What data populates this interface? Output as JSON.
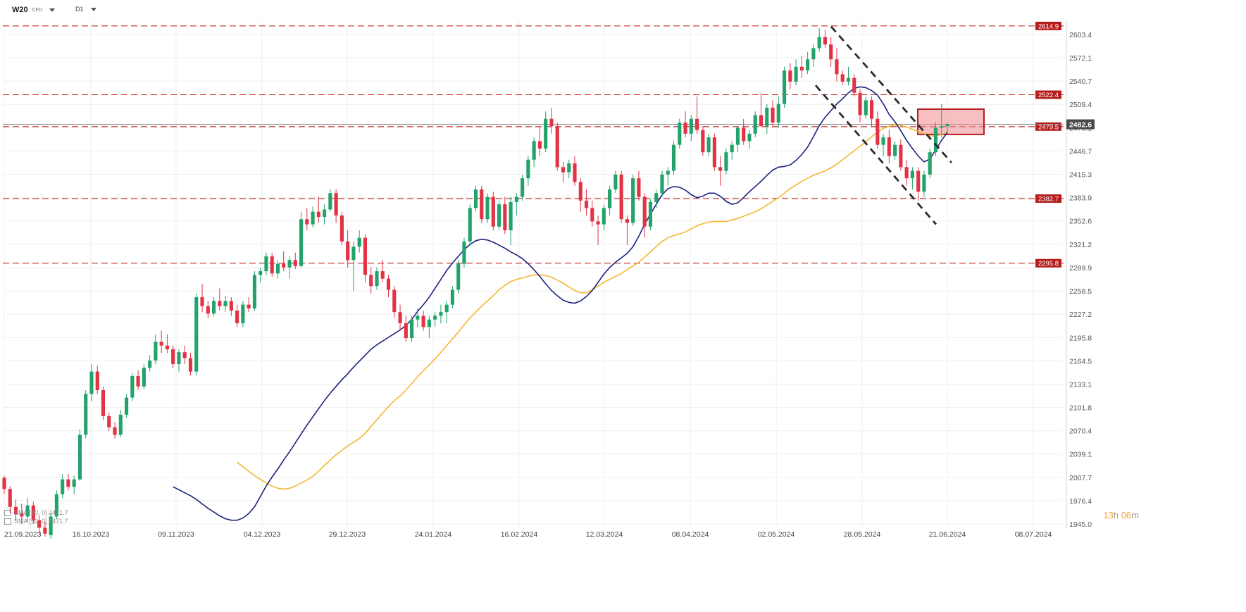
{
  "toolbar": {
    "symbol": "W20",
    "symbol_sub": "CFD",
    "timeframe": "D1"
  },
  "countdown": {
    "hours": "13",
    "h_unit": "h",
    "minutes": "06",
    "m_unit": "m"
  },
  "indicators": [
    {
      "label": "SMA [20, 0] 2471.7",
      "color": "#1a237e"
    },
    {
      "label": "SMA [50, 0] 2471.7",
      "color": "#f5b731"
    }
  ],
  "colors": {
    "up": "#21a36b",
    "down": "#e23244",
    "sma20": "#1a237e",
    "sma50": "#f5b731",
    "level_line": "#c62828",
    "zone_fill": "#f08a8f",
    "zone_border": "#b71c1c",
    "channel": "#2b2b2b"
  },
  "chart_data": {
    "type": "candlestick",
    "y_ticks": [
      "2603.4",
      "2572.1",
      "2540.7",
      "2509.4",
      "2478.1",
      "2446.7",
      "2415.3",
      "2383.9",
      "2352.6",
      "2321.2",
      "2289.9",
      "2258.5",
      "2227.2",
      "2195.8",
      "2164.5",
      "2133.1",
      "2101.8",
      "2070.4",
      "2039.1",
      "2007.7",
      "1976.4",
      "1945.0"
    ],
    "x_ticks": [
      "21.09.2023",
      "16.10.2023",
      "09.11.2023",
      "04.12.2023",
      "29.12.2023",
      "24.01.2024",
      "16.02.2024",
      "12.03.2024",
      "08.04.2024",
      "02.05.2024",
      "28.05.2024",
      "21.06.2024",
      "08.07.2024"
    ],
    "ylim": [
      1945.0,
      2614.9
    ],
    "levels": [
      {
        "value": 2614.9,
        "label": "2614.9"
      },
      {
        "value": 2522.4,
        "label": "2522.4"
      },
      {
        "value": 2479.5,
        "label": "2479.5"
      },
      {
        "value": 2382.7,
        "label": "2382.7"
      },
      {
        "value": 2295.8,
        "label": "2295.8"
      }
    ],
    "current_price": {
      "value": 2482.6,
      "label": "2482.6"
    },
    "sma20": [
      1995,
      1991,
      1987,
      1983,
      1978,
      1972,
      1966,
      1961,
      1956,
      1952,
      1950,
      1950,
      1953,
      1959,
      1968,
      1982,
      1996,
      2008,
      2019,
      2031,
      2042,
      2054,
      2066,
      2078,
      2089,
      2100,
      2111,
      2121,
      2130,
      2139,
      2147,
      2156,
      2164,
      2172,
      2180,
      2186,
      2191,
      2196,
      2201,
      2206,
      2212,
      2220,
      2231,
      2240,
      2250,
      2262,
      2274,
      2286,
      2296,
      2305,
      2314,
      2321,
      2326,
      2328,
      2327,
      2324,
      2320,
      2316,
      2311,
      2307,
      2302,
      2295,
      2287,
      2278,
      2268,
      2259,
      2252,
      2246,
      2243,
      2242,
      2245,
      2251,
      2259,
      2270,
      2281,
      2290,
      2297,
      2303,
      2309,
      2318,
      2332,
      2348,
      2362,
      2375,
      2388,
      2396,
      2399,
      2398,
      2394,
      2388,
      2384,
      2386,
      2390,
      2390,
      2386,
      2379,
      2375,
      2377,
      2384,
      2392,
      2399,
      2406,
      2414,
      2421,
      2425,
      2426,
      2428,
      2434,
      2442,
      2452,
      2466,
      2481,
      2492,
      2501,
      2510,
      2517,
      2525,
      2531,
      2533,
      2532,
      2528,
      2522,
      2510,
      2496,
      2486,
      2474,
      2461,
      2450,
      2440,
      2432,
      2436,
      2448,
      2461,
      2471.7
    ],
    "sma50": [
      2028,
      2022,
      2016,
      2010,
      2005,
      2000,
      1996,
      1993,
      1992,
      1993,
      1996,
      2000,
      2004,
      2009,
      2016,
      2024,
      2031,
      2038,
      2044,
      2050,
      2055,
      2060,
      2067,
      2076,
      2085,
      2094,
      2103,
      2111,
      2117,
      2125,
      2134,
      2143,
      2151,
      2159,
      2167,
      2176,
      2185,
      2194,
      2203,
      2213,
      2222,
      2230,
      2238,
      2245,
      2252,
      2260,
      2266,
      2271,
      2274,
      2276,
      2278,
      2280,
      2280,
      2279,
      2277,
      2273,
      2269,
      2264,
      2259,
      2256,
      2256,
      2260,
      2265,
      2270,
      2274,
      2278,
      2282,
      2287,
      2292,
      2297,
      2304,
      2311,
      2318,
      2325,
      2330,
      2333,
      2335,
      2338,
      2342,
      2346,
      2349,
      2351,
      2352,
      2352,
      2352,
      2354,
      2356,
      2359,
      2362,
      2365,
      2369,
      2374,
      2379,
      2384,
      2390,
      2396,
      2401,
      2406,
      2410,
      2414,
      2417,
      2420,
      2424,
      2429,
      2435,
      2441,
      2447,
      2453,
      2459,
      2466,
      2472,
      2477,
      2480,
      2482,
      2481,
      2479,
      2476,
      2473,
      2470,
      2467,
      2467,
      2469,
      2471.7
    ],
    "channel": [
      {
        "x1_date": "~15.05.2024",
        "y1": 2614.0,
        "x2_date": "~13.06.2024",
        "y2": 2431.0
      },
      {
        "x1_date": "~12.05.2024",
        "y1": 2535.0,
        "x2_date": "~14.06.2024",
        "y2": 2348.0
      }
    ],
    "zone": {
      "x_from": "~10.06.2024",
      "x_to": "~21.06.2024",
      "y_low": 2469.0,
      "y_high": 2503.0
    },
    "candles": [
      [
        2007,
        2010,
        1985,
        1992
      ],
      [
        1992,
        1996,
        1960,
        1968
      ],
      [
        1968,
        1978,
        1950,
        1958
      ],
      [
        1960,
        1972,
        1945,
        1955
      ],
      [
        1955,
        1980,
        1948,
        1970
      ],
      [
        1970,
        1975,
        1945,
        1950
      ],
      [
        1950,
        1956,
        1932,
        1940
      ],
      [
        1940,
        1948,
        1928,
        1932
      ],
      [
        1930,
        1960,
        1925,
        1955
      ],
      [
        1955,
        1990,
        1952,
        1985
      ],
      [
        1985,
        2012,
        1980,
        2005
      ],
      [
        2005,
        2012,
        1990,
        1995
      ],
      [
        1995,
        2010,
        1985,
        2005
      ],
      [
        2005,
        2072,
        2003,
        2065
      ],
      [
        2065,
        2125,
        2060,
        2120
      ],
      [
        2120,
        2160,
        2110,
        2150
      ],
      [
        2150,
        2158,
        2120,
        2125
      ],
      [
        2125,
        2130,
        2085,
        2090
      ],
      [
        2090,
        2095,
        2070,
        2075
      ],
      [
        2075,
        2082,
        2060,
        2065
      ],
      [
        2065,
        2098,
        2062,
        2092
      ],
      [
        2092,
        2120,
        2088,
        2115
      ],
      [
        2115,
        2148,
        2110,
        2144
      ],
      [
        2144,
        2152,
        2125,
        2130
      ],
      [
        2130,
        2160,
        2126,
        2155
      ],
      [
        2155,
        2172,
        2150,
        2165
      ],
      [
        2165,
        2200,
        2160,
        2190
      ],
      [
        2190,
        2205,
        2175,
        2185
      ],
      [
        2185,
        2200,
        2175,
        2180
      ],
      [
        2180,
        2185,
        2155,
        2160
      ],
      [
        2160,
        2180,
        2150,
        2176
      ],
      [
        2176,
        2185,
        2160,
        2168
      ],
      [
        2168,
        2175,
        2145,
        2150
      ],
      [
        2150,
        2255,
        2145,
        2250
      ],
      [
        2250,
        2268,
        2230,
        2238
      ],
      [
        2238,
        2245,
        2222,
        2228
      ],
      [
        2228,
        2250,
        2224,
        2245
      ],
      [
        2245,
        2262,
        2232,
        2238
      ],
      [
        2238,
        2252,
        2230,
        2245
      ],
      [
        2245,
        2250,
        2225,
        2232
      ],
      [
        2232,
        2240,
        2210,
        2215
      ],
      [
        2215,
        2245,
        2210,
        2240
      ],
      [
        2240,
        2250,
        2230,
        2235
      ],
      [
        2235,
        2285,
        2232,
        2280
      ],
      [
        2280,
        2290,
        2270,
        2285
      ],
      [
        2285,
        2310,
        2280,
        2305
      ],
      [
        2305,
        2310,
        2278,
        2282
      ],
      [
        2282,
        2300,
        2275,
        2295
      ],
      [
        2295,
        2312,
        2285,
        2290
      ],
      [
        2290,
        2305,
        2275,
        2300
      ],
      [
        2300,
        2310,
        2288,
        2292
      ],
      [
        2292,
        2365,
        2290,
        2355
      ],
      [
        2355,
        2370,
        2340,
        2348
      ],
      [
        2348,
        2372,
        2344,
        2365
      ],
      [
        2365,
        2385,
        2350,
        2358
      ],
      [
        2358,
        2375,
        2348,
        2368
      ],
      [
        2368,
        2395,
        2365,
        2390
      ],
      [
        2390,
        2395,
        2350,
        2360
      ],
      [
        2360,
        2365,
        2320,
        2325
      ],
      [
        2325,
        2340,
        2290,
        2300
      ],
      [
        2300,
        2325,
        2258,
        2318
      ],
      [
        2318,
        2340,
        2310,
        2330
      ],
      [
        2330,
        2335,
        2270,
        2280
      ],
      [
        2280,
        2290,
        2255,
        2265
      ],
      [
        2265,
        2290,
        2260,
        2285
      ],
      [
        2285,
        2300,
        2270,
        2275
      ],
      [
        2275,
        2280,
        2250,
        2260
      ],
      [
        2260,
        2265,
        2222,
        2230
      ],
      [
        2230,
        2240,
        2205,
        2215
      ],
      [
        2215,
        2225,
        2190,
        2195
      ],
      [
        2195,
        2225,
        2190,
        2220
      ],
      [
        2220,
        2235,
        2210,
        2225
      ],
      [
        2225,
        2232,
        2205,
        2210
      ],
      [
        2210,
        2225,
        2195,
        2220
      ],
      [
        2220,
        2230,
        2210,
        2225
      ],
      [
        2225,
        2240,
        2215,
        2230
      ],
      [
        2230,
        2245,
        2215,
        2240
      ],
      [
        2240,
        2265,
        2235,
        2260
      ],
      [
        2260,
        2300,
        2255,
        2295
      ],
      [
        2295,
        2330,
        2290,
        2325
      ],
      [
        2325,
        2375,
        2320,
        2370
      ],
      [
        2370,
        2400,
        2365,
        2395
      ],
      [
        2395,
        2400,
        2350,
        2355
      ],
      [
        2355,
        2390,
        2350,
        2385
      ],
      [
        2385,
        2392,
        2340,
        2345
      ],
      [
        2345,
        2380,
        2340,
        2375
      ],
      [
        2375,
        2385,
        2335,
        2340
      ],
      [
        2340,
        2385,
        2320,
        2378
      ],
      [
        2378,
        2390,
        2360,
        2385
      ],
      [
        2385,
        2415,
        2380,
        2410
      ],
      [
        2410,
        2440,
        2400,
        2435
      ],
      [
        2435,
        2465,
        2425,
        2460
      ],
      [
        2460,
        2480,
        2440,
        2450
      ],
      [
        2450,
        2500,
        2445,
        2490
      ],
      [
        2490,
        2505,
        2470,
        2480
      ],
      [
        2480,
        2485,
        2420,
        2425
      ],
      [
        2425,
        2432,
        2405,
        2418
      ],
      [
        2418,
        2435,
        2410,
        2430
      ],
      [
        2430,
        2440,
        2400,
        2405
      ],
      [
        2405,
        2410,
        2365,
        2380
      ],
      [
        2380,
        2395,
        2360,
        2370
      ],
      [
        2370,
        2380,
        2345,
        2352
      ],
      [
        2352,
        2360,
        2320,
        2348
      ],
      [
        2348,
        2375,
        2340,
        2370
      ],
      [
        2370,
        2400,
        2360,
        2395
      ],
      [
        2395,
        2420,
        2390,
        2415
      ],
      [
        2415,
        2420,
        2350,
        2355
      ],
      [
        2355,
        2360,
        2320,
        2350
      ],
      [
        2350,
        2415,
        2346,
        2410
      ],
      [
        2410,
        2420,
        2380,
        2385
      ],
      [
        2385,
        2390,
        2330,
        2345
      ],
      [
        2345,
        2382,
        2340,
        2378
      ],
      [
        2378,
        2395,
        2370,
        2390
      ],
      [
        2390,
        2420,
        2385,
        2415
      ],
      [
        2415,
        2425,
        2400,
        2420
      ],
      [
        2420,
        2460,
        2415,
        2455
      ],
      [
        2455,
        2490,
        2450,
        2485
      ],
      [
        2485,
        2500,
        2465,
        2470
      ],
      [
        2470,
        2495,
        2460,
        2490
      ],
      [
        2490,
        2520,
        2470,
        2475
      ],
      [
        2475,
        2480,
        2440,
        2445
      ],
      [
        2445,
        2470,
        2440,
        2465
      ],
      [
        2465,
        2470,
        2420,
        2425
      ],
      [
        2425,
        2440,
        2400,
        2420
      ],
      [
        2420,
        2450,
        2415,
        2445
      ],
      [
        2445,
        2460,
        2435,
        2455
      ],
      [
        2455,
        2480,
        2445,
        2478
      ],
      [
        2478,
        2490,
        2455,
        2460
      ],
      [
        2460,
        2475,
        2450,
        2470
      ],
      [
        2470,
        2500,
        2465,
        2495
      ],
      [
        2495,
        2525,
        2485,
        2480
      ],
      [
        2480,
        2510,
        2470,
        2505
      ],
      [
        2505,
        2515,
        2480,
        2485
      ],
      [
        2485,
        2520,
        2478,
        2510
      ],
      [
        2510,
        2560,
        2505,
        2555
      ],
      [
        2555,
        2565,
        2530,
        2540
      ],
      [
        2540,
        2570,
        2535,
        2560
      ],
      [
        2560,
        2575,
        2545,
        2555
      ],
      [
        2555,
        2580,
        2550,
        2570
      ],
      [
        2570,
        2590,
        2560,
        2585
      ],
      [
        2585,
        2612,
        2580,
        2600
      ],
      [
        2600,
        2610,
        2585,
        2590
      ],
      [
        2590,
        2600,
        2560,
        2570
      ],
      [
        2570,
        2585,
        2540,
        2550
      ],
      [
        2550,
        2555,
        2535,
        2540
      ],
      [
        2540,
        2560,
        2535,
        2545
      ],
      [
        2545,
        2550,
        2520,
        2525
      ],
      [
        2525,
        2530,
        2485,
        2495
      ],
      [
        2495,
        2520,
        2490,
        2515
      ],
      [
        2515,
        2520,
        2480,
        2490
      ],
      [
        2490,
        2500,
        2450,
        2455
      ],
      [
        2455,
        2470,
        2440,
        2465
      ],
      [
        2465,
        2475,
        2430,
        2440
      ],
      [
        2440,
        2460,
        2435,
        2455
      ],
      [
        2455,
        2462,
        2420,
        2425
      ],
      [
        2425,
        2435,
        2400,
        2410
      ],
      [
        2410,
        2425,
        2395,
        2420
      ],
      [
        2420,
        2425,
        2380,
        2392
      ],
      [
        2392,
        2420,
        2385,
        2415
      ],
      [
        2415,
        2450,
        2410,
        2445
      ],
      [
        2445,
        2485,
        2440,
        2478
      ],
      [
        2478,
        2510,
        2465,
        2480
      ],
      [
        2480,
        2485,
        2472,
        2482.6
      ]
    ]
  }
}
